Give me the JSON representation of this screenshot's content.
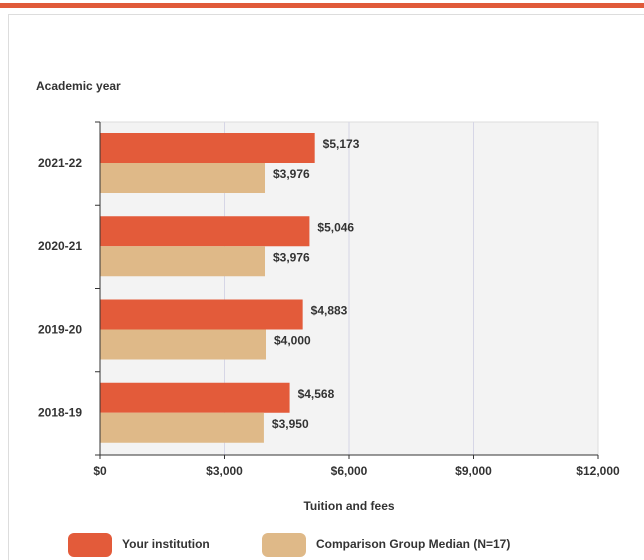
{
  "chart_data": {
    "type": "barh",
    "ylabel": "Academic year",
    "xlabel": "Tuition and fees",
    "categories": [
      "2021-22",
      "2020-21",
      "2019-20",
      "2018-19"
    ],
    "series": [
      {
        "name": "Your institution",
        "color": "#e35b3a",
        "values": [
          5173,
          5046,
          4883,
          4568
        ],
        "value_labels": [
          "$5,173",
          "$5,046",
          "$4,883",
          "$4,568"
        ]
      },
      {
        "name": "Comparison Group Median (N=17)",
        "color": "#dfb988",
        "values": [
          3976,
          3976,
          4000,
          3950
        ],
        "value_labels": [
          "$3,976",
          "$3,976",
          "$4,000",
          "$3,950"
        ]
      }
    ],
    "xlim": [
      0,
      12000
    ],
    "xticks": [
      {
        "value": 0,
        "label": "$0"
      },
      {
        "value": 3000,
        "label": "$3,000"
      },
      {
        "value": 6000,
        "label": "$6,000"
      },
      {
        "value": 9000,
        "label": "$9,000"
      },
      {
        "value": 12000,
        "label": "$12,000"
      }
    ],
    "grid": true,
    "legend": "bottom"
  }
}
